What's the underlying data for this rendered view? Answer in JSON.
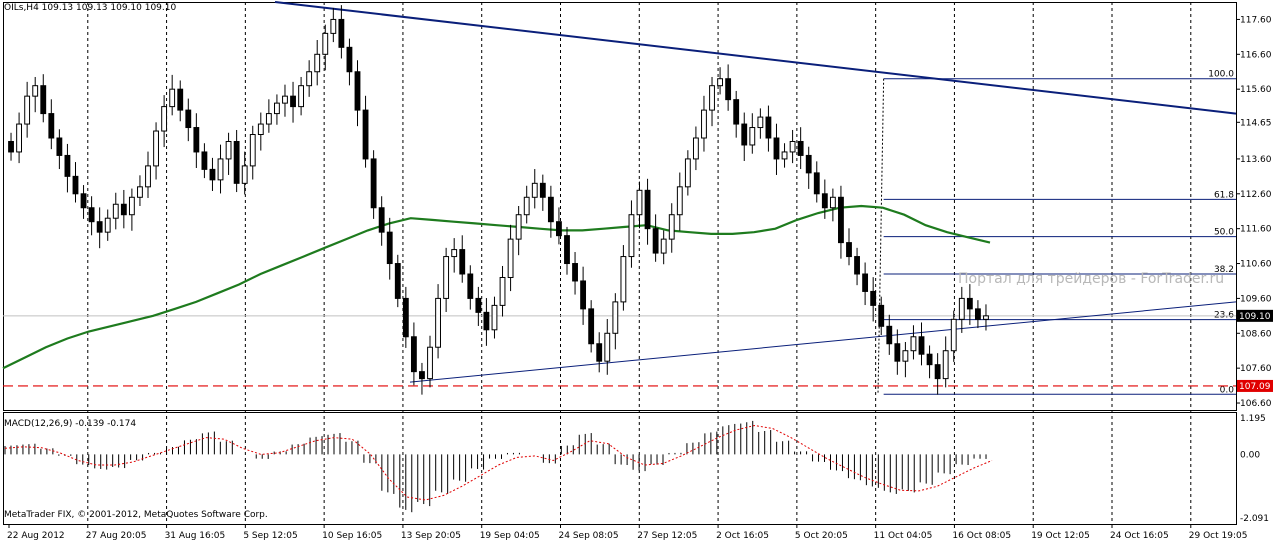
{
  "header": {
    "symbol_tf": "OILs,H4",
    "ohlc": "109.13 109.13 109.10 109.10"
  },
  "macd_header": "MACD(12,26,9) -0.139 -0.174",
  "copyright": "MetaTrader FIX, © 2001-2012, MetaQuotes Software Corp.",
  "watermark": "Портал для трейдеров - ForTrader.ru",
  "price_axis": {
    "ticks": [
      "117.60",
      "116.60",
      "115.60",
      "114.65",
      "113.60",
      "112.60",
      "111.60",
      "110.60",
      "109.60",
      "108.60",
      "107.60",
      "106.60"
    ],
    "current_price": "109.10",
    "hline_price": "107.09"
  },
  "macd_axis": {
    "ticks": [
      "1.195",
      "0.00",
      "-2.091"
    ]
  },
  "time_axis": [
    "22 Aug 2012",
    "27 Aug 20:05",
    "31 Aug 16:05",
    "5 Sep 12:05",
    "10 Sep 16:05",
    "13 Sep 20:05",
    "19 Sep 04:05",
    "24 Sep 08:05",
    "27 Sep 12:05",
    "2 Oct 16:05",
    "5 Oct 20:05",
    "11 Oct 04:05",
    "16 Oct 08:05",
    "19 Oct 12:05",
    "24 Oct 16:05",
    "29 Oct 19:05"
  ],
  "fib_levels": [
    {
      "label": "100.0",
      "price": 115.9
    },
    {
      "label": "61.8",
      "price": 112.44
    },
    {
      "label": "50.0",
      "price": 111.37
    },
    {
      "label": "38.2",
      "price": 110.3
    },
    {
      "label": "23.6",
      "price": 108.99
    },
    {
      "label": "0.0",
      "price": 106.85
    }
  ],
  "colors": {
    "bull": "#000000",
    "bear": "#000000",
    "ma": "#1e7b1e",
    "trendline": "#0a1f7a",
    "fib": "#0a1f7a",
    "hline": "#e00000",
    "price_label_bg": "#000000",
    "hline_label_bg": "#e00000",
    "macd_signal": "#e00000"
  },
  "chart_data": {
    "type": "candlestick",
    "title": "OILs,H4",
    "symbol": "OILs",
    "timeframe": "H4",
    "price_range": [
      106.4,
      118.1
    ],
    "closes": [
      113.8,
      114.6,
      115.4,
      115.7,
      114.9,
      114.2,
      113.7,
      113.1,
      112.6,
      112.2,
      111.8,
      111.5,
      111.9,
      112.3,
      112.0,
      112.5,
      112.8,
      113.4,
      114.4,
      115.1,
      115.6,
      115.0,
      114.5,
      113.8,
      113.3,
      113.0,
      113.6,
      114.1,
      112.9,
      113.4,
      114.3,
      114.6,
      114.9,
      115.2,
      115.4,
      115.1,
      115.7,
      116.1,
      116.6,
      117.2,
      117.6,
      116.8,
      116.1,
      115.0,
      113.6,
      112.2,
      111.5,
      110.6,
      109.6,
      108.5,
      107.5,
      107.3,
      108.2,
      109.6,
      110.8,
      111.0,
      110.3,
      109.6,
      109.2,
      108.7,
      109.4,
      110.2,
      111.3,
      112.0,
      112.5,
      112.9,
      112.5,
      111.8,
      111.4,
      110.6,
      110.1,
      109.3,
      108.3,
      107.8,
      108.6,
      109.5,
      110.8,
      112.0,
      112.7,
      111.6,
      110.9,
      111.3,
      112.0,
      112.8,
      113.6,
      114.2,
      115.0,
      115.7,
      115.9,
      115.3,
      114.6,
      114.0,
      114.5,
      114.8,
      114.2,
      113.6,
      113.8,
      114.1,
      113.7,
      113.2,
      112.6,
      112.2,
      112.5,
      111.2,
      110.8,
      110.3,
      109.8,
      109.4,
      108.8,
      108.3,
      107.8,
      108.1,
      108.5,
      108.0,
      107.7,
      107.3,
      108.1,
      109.0,
      109.6,
      109.3,
      109.0,
      109.1
    ],
    "ma_values": [
      107.6,
      107.9,
      108.2,
      108.45,
      108.65,
      108.8,
      108.95,
      109.1,
      109.3,
      109.5,
      109.75,
      110.0,
      110.3,
      110.55,
      110.8,
      111.05,
      111.3,
      111.55,
      111.75,
      111.9,
      111.85,
      111.8,
      111.75,
      111.7,
      111.65,
      111.6,
      111.55,
      111.55,
      111.6,
      111.65,
      111.7,
      111.55,
      111.5,
      111.45,
      111.45,
      111.5,
      111.6,
      111.85,
      112.05,
      112.2,
      112.25,
      112.2,
      112.0,
      111.7,
      111.5,
      111.35,
      111.2
    ],
    "macd_hist": [
      0.3,
      0.35,
      0.2,
      -0.05,
      -0.35,
      -0.5,
      -0.45,
      -0.2,
      0.05,
      0.25,
      0.5,
      0.75,
      0.45,
      0.0,
      -0.15,
      0.1,
      0.35,
      0.6,
      0.7,
      0.45,
      -0.3,
      -1.3,
      -1.9,
      -1.7,
      -1.3,
      -0.9,
      -0.5,
      -0.15,
      0.05,
      0.0,
      -0.3,
      0.3,
      0.7,
      0.35,
      -0.35,
      -0.55,
      -0.35,
      0.05,
      0.4,
      0.75,
      1.0,
      1.1,
      0.8,
      0.45,
      0.1,
      -0.25,
      -0.55,
      -0.85,
      -1.1,
      -1.3,
      -1.25,
      -1.0,
      -0.65,
      -0.35,
      -0.15
    ],
    "macd_signal": [
      0.2,
      0.25,
      0.22,
      0.05,
      -0.2,
      -0.35,
      -0.35,
      -0.25,
      -0.05,
      0.15,
      0.35,
      0.55,
      0.5,
      0.2,
      0.0,
      0.05,
      0.25,
      0.45,
      0.55,
      0.5,
      0.0,
      -0.8,
      -1.4,
      -1.5,
      -1.35,
      -1.05,
      -0.7,
      -0.35,
      -0.1,
      -0.05,
      -0.2,
      0.1,
      0.45,
      0.35,
      -0.1,
      -0.35,
      -0.3,
      -0.05,
      0.25,
      0.55,
      0.8,
      0.95,
      0.85,
      0.55,
      0.2,
      -0.15,
      -0.45,
      -0.75,
      -0.98,
      -1.18,
      -1.2,
      -1.05,
      -0.75,
      -0.45,
      -0.2
    ],
    "macd_range": [
      -2.091,
      1.195
    ],
    "x_labels": [
      "22 Aug 2012",
      "27 Aug 20:05",
      "31 Aug 16:05",
      "5 Sep 12:05",
      "10 Sep 16:05",
      "13 Sep 20:05",
      "19 Sep 04:05",
      "24 Sep 08:05",
      "27 Sep 12:05",
      "2 Oct 16:05",
      "5 Oct 20:05",
      "11 Oct 04:05",
      "16 Oct 08:05",
      "19 Oct 12:05",
      "24 Oct 16:05",
      "29 Oct 19:05"
    ]
  }
}
